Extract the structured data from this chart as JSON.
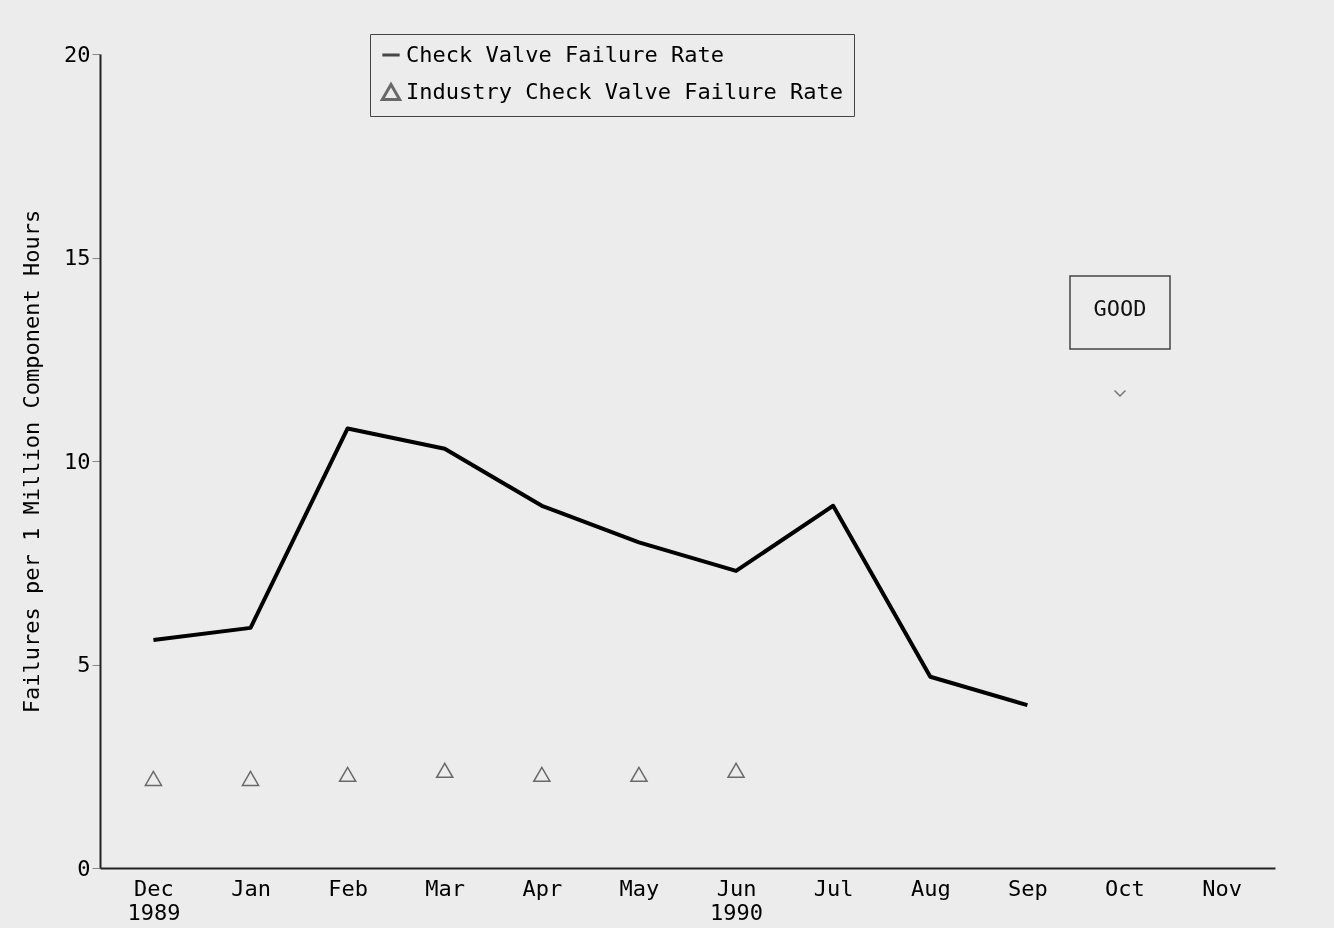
{
  "chart_data": {
    "type": "line",
    "ylabel": "Failures per 1 Million Component Hours",
    "categories": [
      "Dec 1989",
      "Jan",
      "Feb",
      "Mar",
      "Apr",
      "May",
      "Jun 1990",
      "Jul",
      "Aug",
      "Sep",
      "Oct",
      "Nov"
    ],
    "series": [
      {
        "name": "Check Valve Failure Rate",
        "color": "#000000",
        "values": [
          5.6,
          5.9,
          10.8,
          10.3,
          8.9,
          8.0,
          7.3,
          8.9,
          4.7,
          4.0,
          null,
          null
        ]
      },
      {
        "name": "Industry Check Valve Failure Rate",
        "type": "scatter",
        "marker": "triangle",
        "color": "#333333",
        "values": [
          2.2,
          2.2,
          2.3,
          2.4,
          2.3,
          2.3,
          2.4,
          null,
          null,
          null,
          null,
          null
        ]
      }
    ],
    "ylim": [
      0,
      20
    ],
    "yticks": [
      0,
      5,
      10,
      15,
      20
    ],
    "grid": false,
    "legend": "top",
    "annotations": [
      "GOOD"
    ]
  }
}
